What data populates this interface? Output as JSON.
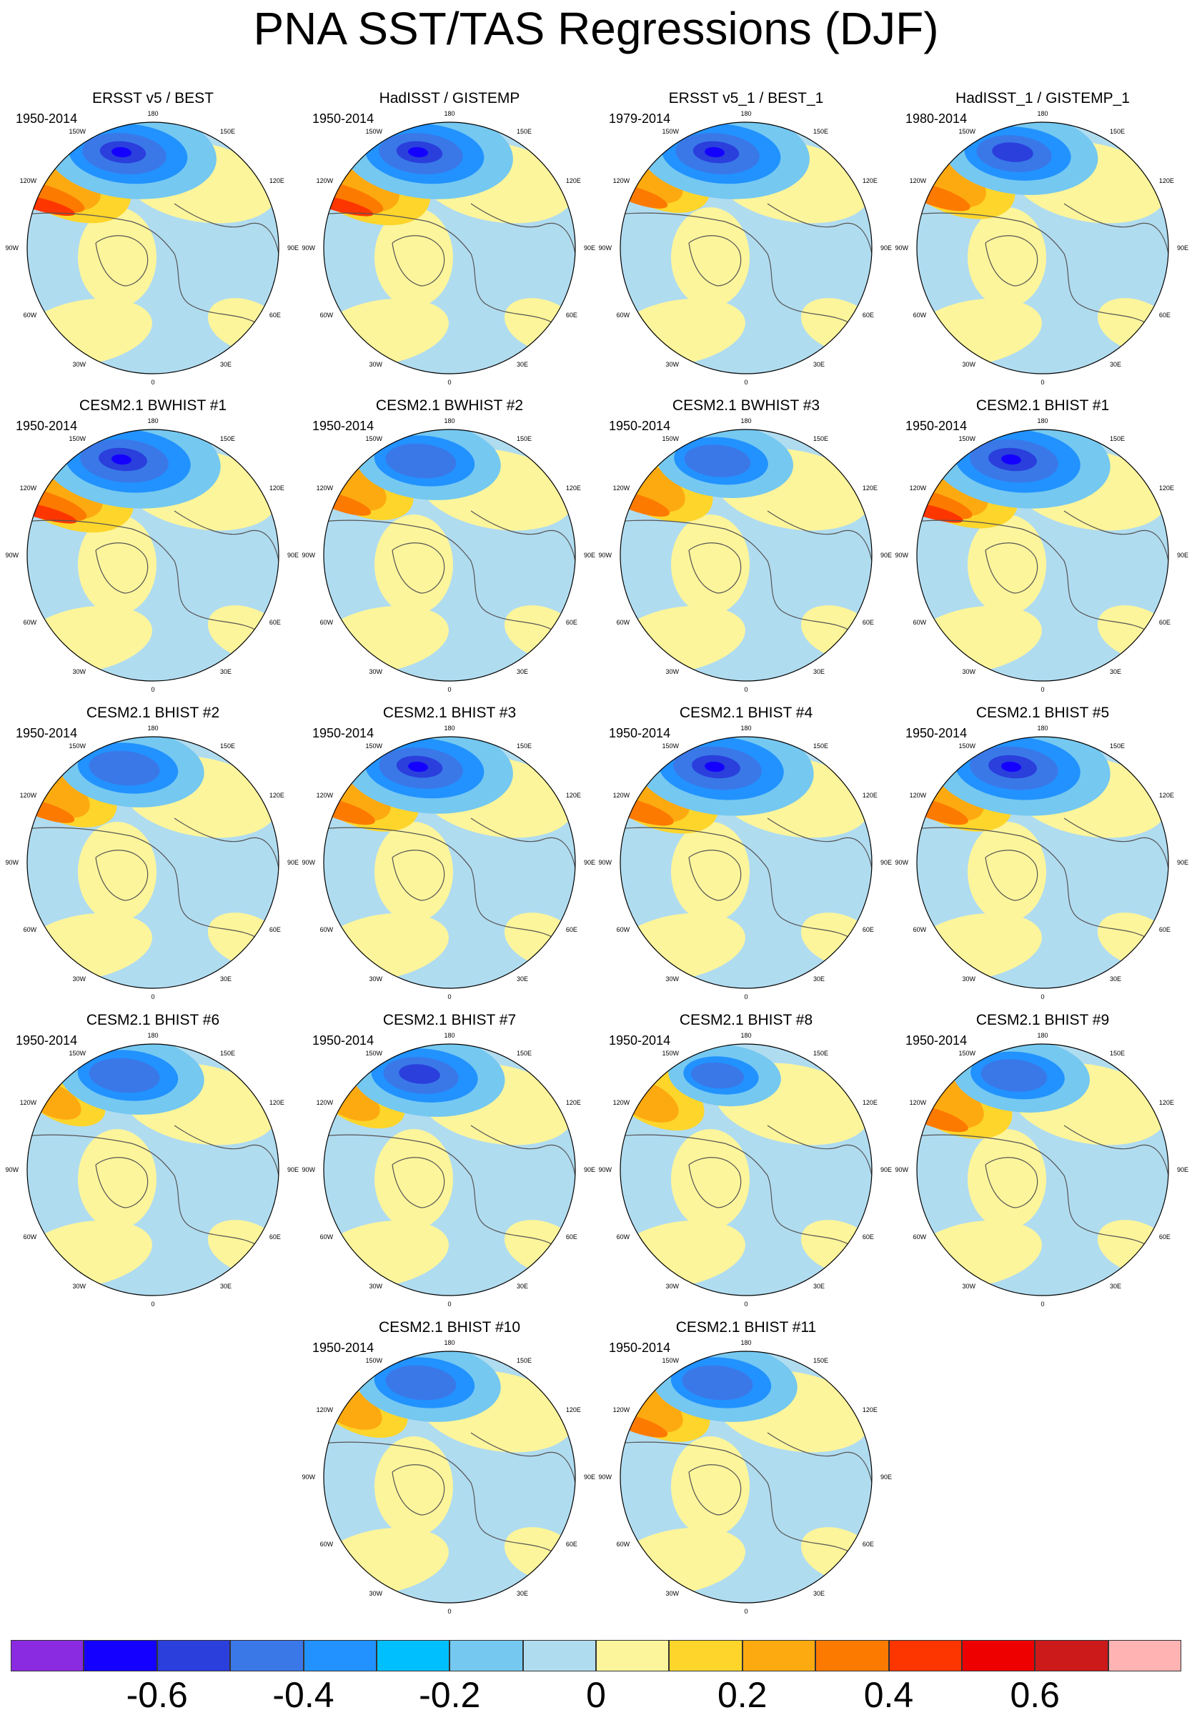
{
  "title": "PNA SST/TAS Regressions (DJF)",
  "lon_labels": {
    "top": "180",
    "nw": "150W",
    "ne": "150E",
    "wnw": "120W",
    "ene": "120E",
    "w": "90W",
    "e": "90E",
    "wsw": "60W",
    "ese": "60E",
    "sw": "30W",
    "se": "30E",
    "bottom": "0"
  },
  "panels": [
    {
      "title": "ERSST v5 / BEST",
      "years": "1950-2014",
      "cold": 0.95,
      "warm": 0.95
    },
    {
      "title": "HadISST / GISTEMP",
      "years": "1950-2014",
      "cold": 0.95,
      "warm": 1.0
    },
    {
      "title": "ERSST v5_1 / BEST_1",
      "years": "1979-2014",
      "cold": 0.95,
      "warm": 0.7
    },
    {
      "title": "HadISST_1 / GISTEMP_1",
      "years": "1980-2014",
      "cold": 0.85,
      "warm": 0.85
    },
    {
      "title": "CESM2.1 BWHIST #1",
      "years": "1950-2014",
      "cold": 1.0,
      "warm": 1.0
    },
    {
      "title": "CESM2.1 BWHIST #2",
      "years": "1950-2014",
      "cold": 0.8,
      "warm": 0.7
    },
    {
      "title": "CESM2.1 BWHIST #3",
      "years": "1950-2014",
      "cold": 0.75,
      "warm": 0.75
    },
    {
      "title": "CESM2.1 BHIST #1",
      "years": "1950-2014",
      "cold": 1.0,
      "warm": 0.9
    },
    {
      "title": "CESM2.1 BHIST #2",
      "years": "1950-2014",
      "cold": 0.8,
      "warm": 0.7
    },
    {
      "title": "CESM2.1 BHIST #3",
      "years": "1950-2014",
      "cold": 0.95,
      "warm": 0.8
    },
    {
      "title": "CESM2.1 BHIST #4",
      "years": "1950-2014",
      "cold": 1.0,
      "warm": 0.85
    },
    {
      "title": "CESM2.1 BHIST #5",
      "years": "1950-2014",
      "cold": 1.0,
      "warm": 0.8
    },
    {
      "title": "CESM2.1 BHIST #6",
      "years": "1950-2014",
      "cold": 0.8,
      "warm": 0.5
    },
    {
      "title": "CESM2.1 BHIST #7",
      "years": "1950-2014",
      "cold": 0.85,
      "warm": 0.55
    },
    {
      "title": "CESM2.1 BHIST #8",
      "years": "1950-2014",
      "cold": 0.6,
      "warm": 0.6
    },
    {
      "title": "CESM2.1 BHIST #9",
      "years": "1950-2014",
      "cold": 0.75,
      "warm": 0.8
    },
    {
      "title": "CESM2.1 BHIST #10",
      "years": "1950-2014",
      "cold": 0.8,
      "warm": 0.6
    },
    {
      "title": "CESM2.1 BHIST #11",
      "years": "1950-2014",
      "cold": 0.8,
      "warm": 0.7
    }
  ],
  "colorbar": {
    "colors": [
      "#8a2be2",
      "#1400ff",
      "#2a3fdc",
      "#3a78e8",
      "#2192ff",
      "#00bfff",
      "#75c8f0",
      "#b0dcf0",
      "#fdf59b",
      "#fdd52b",
      "#fdaa10",
      "#fd7a00",
      "#fd3600",
      "#ee0000",
      "#cc1a1a",
      "#ffb3b3"
    ],
    "labels": [
      "-0.6",
      "-0.4",
      "-0.2",
      "0",
      "0.2",
      "0.4",
      "0.6"
    ]
  }
}
